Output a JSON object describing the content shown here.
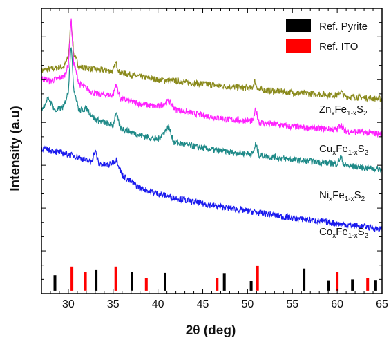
{
  "chart_data": {
    "type": "line",
    "xlabel": "2θ (deg)",
    "ylabel": "Intensity (a.u)",
    "xlim": [
      27,
      65
    ],
    "ylim": [
      0,
      10
    ],
    "x_ticks": [
      30,
      35,
      40,
      45,
      50,
      55,
      60,
      65
    ],
    "y_ticks": "unlabeled",
    "grid": false,
    "legend": {
      "placement": "top-right",
      "entries": [
        {
          "label": "Ref. Pyrite",
          "color": "#000000"
        },
        {
          "label": "Ref. ITO",
          "color": "#ff0000"
        }
      ]
    },
    "series": [
      {
        "name": "Zn_xFe_1-x_S_2",
        "label_main": [
          "Zn",
          "Fe",
          "S"
        ],
        "label_sub": [
          "x",
          "1-x",
          "2"
        ],
        "color": "#8a8a1c",
        "points": [
          [
            27,
            7.82
          ],
          [
            28.5,
            7.9
          ],
          [
            29.5,
            7.95
          ],
          [
            30,
            8.3
          ],
          [
            30.3,
            9.6
          ],
          [
            30.6,
            8.4
          ],
          [
            31.2,
            7.95
          ],
          [
            33,
            7.85
          ],
          [
            35,
            7.8
          ],
          [
            35.3,
            8.1
          ],
          [
            35.7,
            7.75
          ],
          [
            38,
            7.6
          ],
          [
            40,
            7.5
          ],
          [
            42,
            7.45
          ],
          [
            45,
            7.35
          ],
          [
            48,
            7.25
          ],
          [
            50.5,
            7.2
          ],
          [
            50.8,
            7.45
          ],
          [
            51.2,
            7.15
          ],
          [
            55,
            7.05
          ],
          [
            60,
            6.95
          ],
          [
            60.4,
            7.1
          ],
          [
            60.8,
            6.92
          ],
          [
            65,
            6.82
          ]
        ]
      },
      {
        "name": "Cu_xFe_1-x_S_2",
        "label_main": [
          "Cu",
          "Fe",
          "S"
        ],
        "label_sub": [
          "x",
          "1-x",
          "2"
        ],
        "color": "#ff22ff",
        "points": [
          [
            27,
            7.55
          ],
          [
            28,
            7.45
          ],
          [
            29.5,
            7.6
          ],
          [
            30,
            8.0
          ],
          [
            30.3,
            9.65
          ],
          [
            30.6,
            8.1
          ],
          [
            31.2,
            7.35
          ],
          [
            32,
            7.2
          ],
          [
            33,
            7.0
          ],
          [
            35,
            6.95
          ],
          [
            35.3,
            7.35
          ],
          [
            35.8,
            6.85
          ],
          [
            38,
            6.65
          ],
          [
            40,
            6.55
          ],
          [
            41.2,
            6.75
          ],
          [
            42,
            6.45
          ],
          [
            45,
            6.25
          ],
          [
            48,
            6.1
          ],
          [
            50.6,
            6.05
          ],
          [
            50.9,
            6.45
          ],
          [
            51.3,
            6.0
          ],
          [
            52.5,
            5.95
          ],
          [
            55,
            5.85
          ],
          [
            60,
            5.75
          ],
          [
            60.4,
            5.95
          ],
          [
            60.8,
            5.7
          ],
          [
            65,
            5.6
          ]
        ]
      },
      {
        "name": "Ni_xFe_1-x_S_2",
        "label_main": [
          "Ni",
          "Fe",
          "S"
        ],
        "label_sub": [
          "x",
          "1-x",
          "2"
        ],
        "color": "#1f8a88",
        "points": [
          [
            27,
            6.45
          ],
          [
            27.8,
            6.85
          ],
          [
            28.5,
            6.4
          ],
          [
            29.5,
            6.55
          ],
          [
            30,
            7.1
          ],
          [
            30.3,
            8.8
          ],
          [
            30.6,
            7.2
          ],
          [
            31.2,
            6.4
          ],
          [
            32,
            6.5
          ],
          [
            33,
            6.1
          ],
          [
            35,
            5.9
          ],
          [
            35.3,
            6.35
          ],
          [
            35.8,
            5.8
          ],
          [
            38,
            5.55
          ],
          [
            40,
            5.4
          ],
          [
            41.2,
            5.85
          ],
          [
            41.8,
            5.3
          ],
          [
            45,
            5.1
          ],
          [
            48,
            4.95
          ],
          [
            50.6,
            4.9
          ],
          [
            50.9,
            5.25
          ],
          [
            51.3,
            4.85
          ],
          [
            55,
            4.7
          ],
          [
            60,
            4.55
          ],
          [
            60.4,
            4.8
          ],
          [
            60.8,
            4.5
          ],
          [
            65,
            4.35
          ]
        ]
      },
      {
        "name": "Co_xFe_1-x_S_2",
        "label_main": [
          "Co",
          "Fe",
          "S"
        ],
        "label_sub": [
          "x",
          "1-x",
          "2"
        ],
        "color": "#1a1aee",
        "points": [
          [
            27,
            5.1
          ],
          [
            29,
            4.95
          ],
          [
            31,
            4.8
          ],
          [
            32.5,
            4.6
          ],
          [
            33,
            5.0
          ],
          [
            33.4,
            4.55
          ],
          [
            34.5,
            4.5
          ],
          [
            35.4,
            4.7
          ],
          [
            36,
            4.15
          ],
          [
            38,
            3.7
          ],
          [
            40,
            3.5
          ],
          [
            42,
            3.35
          ],
          [
            45,
            3.15
          ],
          [
            48,
            3.0
          ],
          [
            50,
            2.9
          ],
          [
            52,
            2.8
          ],
          [
            55,
            2.65
          ],
          [
            58,
            2.55
          ],
          [
            60,
            2.45
          ],
          [
            63,
            2.35
          ],
          [
            65,
            2.25
          ]
        ]
      }
    ],
    "reference_bars": {
      "pyrite": {
        "color": "#000000",
        "x": [
          28.5,
          33.1,
          37.1,
          40.8,
          47.4,
          50.4,
          56.3,
          59.0,
          61.7,
          64.3
        ],
        "y": [
          0.65,
          0.85,
          0.75,
          0.73,
          0.72,
          0.45,
          0.88,
          0.47,
          0.5,
          0.48
        ]
      },
      "ito": {
        "color": "#ff0000",
        "x": [
          30.4,
          31.9,
          35.3,
          38.7,
          46.6,
          51.1,
          60.0,
          63.4
        ],
        "y": [
          0.95,
          0.75,
          0.95,
          0.55,
          0.55,
          0.97,
          0.77,
          0.55
        ]
      }
    }
  }
}
